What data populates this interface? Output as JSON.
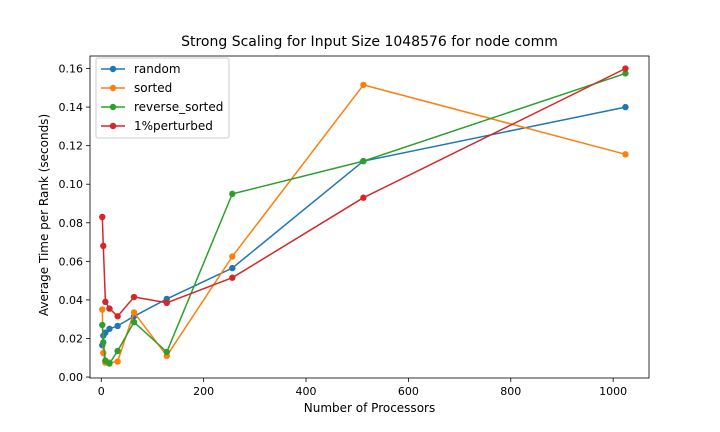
{
  "chart_data": {
    "type": "line",
    "title": "Strong Scaling for Input Size 1048576 for node comm",
    "xlabel": "Number of Processors",
    "ylabel": "Average Time per Rank (seconds)",
    "xlim": [
      -22,
      1070
    ],
    "ylim": [
      -0.0005,
      0.1665
    ],
    "xticks": [
      0,
      200,
      400,
      600,
      800,
      1000
    ],
    "yticks": [
      0.0,
      0.02,
      0.04,
      0.06,
      0.08,
      0.1,
      0.12,
      0.14,
      0.16
    ],
    "ytick_labels": [
      "0.00",
      "0.02",
      "0.04",
      "0.06",
      "0.08",
      "0.10",
      "0.12",
      "0.14",
      "0.16"
    ],
    "grid": false,
    "legend_position": "top-left",
    "x": [
      2,
      4,
      8,
      16,
      32,
      64,
      128,
      256,
      512,
      1024
    ],
    "series": [
      {
        "name": "random",
        "color": "#1f77b4",
        "values": [
          0.0165,
          0.0215,
          0.023,
          0.025,
          0.0265,
          0.0315,
          0.0405,
          0.0565,
          0.112,
          0.14
        ]
      },
      {
        "name": "sorted",
        "color": "#ff7f0e",
        "values": [
          0.035,
          0.0125,
          0.0075,
          0.0075,
          0.008,
          0.0335,
          0.011,
          0.0625,
          0.1515,
          0.1155
        ]
      },
      {
        "name": "reverse_sorted",
        "color": "#2ca02c",
        "values": [
          0.027,
          0.018,
          0.0085,
          0.007,
          0.0135,
          0.0285,
          0.013,
          0.095,
          0.112,
          0.1575
        ]
      },
      {
        "name": "1%perturbed",
        "color": "#d62728",
        "values": [
          0.083,
          0.068,
          0.039,
          0.0355,
          0.0315,
          0.0415,
          0.0385,
          0.0515,
          0.093,
          0.16
        ]
      }
    ]
  }
}
